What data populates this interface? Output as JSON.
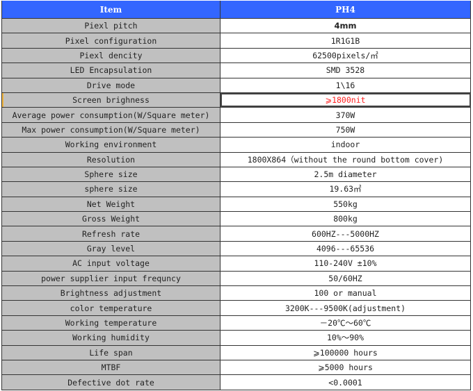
{
  "header": {
    "item": "Item",
    "model": "PH4"
  },
  "highlight_color": "#ff2020",
  "header_color": "#3366ff",
  "rows": [
    {
      "item": "Piexl pitch",
      "value": "4mm"
    },
    {
      "item": "Pixel configuration",
      "value": "1R1G1B"
    },
    {
      "item": "Piexl dencity",
      "value": "62500pixels/㎡"
    },
    {
      "item": "LED Encapsulation",
      "value": "SMD  3528"
    },
    {
      "item": "Drive mode",
      "value": "1\\16"
    },
    {
      "item": "Screen brighness",
      "value": "⩾1800nit"
    },
    {
      "item": "Average power consumption(W/Square meter)",
      "value": "370W"
    },
    {
      "item": "Max power consumption(W/Square meter)",
      "value": "750W"
    },
    {
      "item": "Working environment",
      "value": "indoor"
    },
    {
      "item": "Resolution",
      "value": "1800X864（without the round bottom cover)"
    },
    {
      "item": "Sphere size",
      "value": "2.5m diameter"
    },
    {
      "item": "sphere size",
      "value": "19.63㎡"
    },
    {
      "item": "Net Weight",
      "value": "550kg"
    },
    {
      "item": "Gross Weight",
      "value": "800kg"
    },
    {
      "item": "Refresh rate",
      "value": "600HZ---5000HZ"
    },
    {
      "item": "Gray level",
      "value": "4096---65536"
    },
    {
      "item": "AC input voltage",
      "value": "110-240V ±10%"
    },
    {
      "item": "power supplier input frequncy",
      "value": "50/60HZ"
    },
    {
      "item": "Brightness adjustment",
      "value": "100 or manual"
    },
    {
      "item": "color temperature",
      "value": "3200K---9500K(adjustment)"
    },
    {
      "item": "Working temperature",
      "value": "－20℃～60℃"
    },
    {
      "item": "Working humidity",
      "value": "10%～90%"
    },
    {
      "item": "Life span",
      "value": "⩾100000 hours"
    },
    {
      "item": "MTBF",
      "value": "⩾5000 hours"
    },
    {
      "item": "Defective dot rate",
      "value": "<0.0001"
    }
  ]
}
